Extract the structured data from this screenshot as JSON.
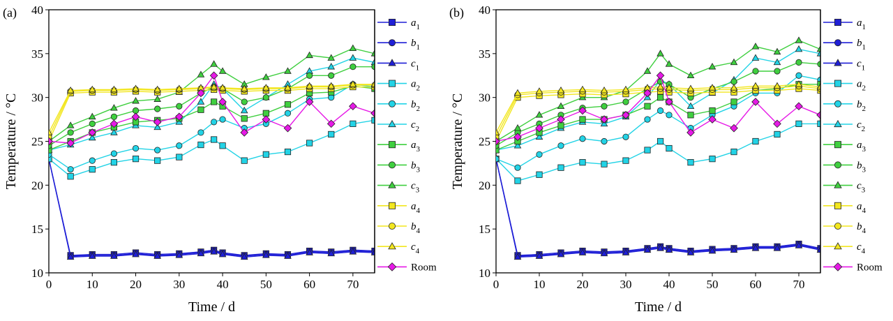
{
  "chart_data": [
    {
      "type": "line",
      "panel_label": "(a)",
      "title": "",
      "xlabel": "Time / d",
      "ylabel": "Temperature / °C",
      "xlim": [
        0,
        75
      ],
      "ylim": [
        10,
        40
      ],
      "xticks": [
        "0",
        "10",
        "20",
        "30",
        "40",
        "50",
        "60",
        "70"
      ],
      "yticks": [
        "10",
        "15",
        "20",
        "25",
        "30",
        "35",
        "40"
      ],
      "x": [
        0,
        5,
        10,
        15,
        20,
        25,
        30,
        35,
        38,
        40,
        45,
        50,
        55,
        60,
        65,
        70,
        75
      ],
      "series": [
        {
          "name": "a1",
          "color": "#1f1fd6",
          "marker": "square",
          "values": [
            23.0,
            12.0,
            12.1,
            12.1,
            12.3,
            12.1,
            12.2,
            12.4,
            12.6,
            12.3,
            12.0,
            12.2,
            12.1,
            12.5,
            12.4,
            12.6,
            12.5
          ]
        },
        {
          "name": "b1",
          "color": "#1f1fd6",
          "marker": "circle",
          "values": [
            23.0,
            11.9,
            12.0,
            12.0,
            12.2,
            12.0,
            12.1,
            12.3,
            12.5,
            12.2,
            11.9,
            12.1,
            12.0,
            12.4,
            12.3,
            12.5,
            12.4
          ]
        },
        {
          "name": "c1",
          "color": "#1f1fd6",
          "marker": "triangle",
          "values": [
            23.0,
            11.8,
            11.9,
            11.9,
            12.1,
            11.9,
            12.0,
            12.2,
            12.4,
            12.1,
            11.8,
            12.0,
            11.9,
            12.3,
            12.2,
            12.4,
            12.3
          ]
        },
        {
          "name": "a2",
          "color": "#22d3e6",
          "marker": "square",
          "values": [
            23.0,
            21.0,
            21.8,
            22.6,
            23.0,
            22.8,
            23.2,
            24.6,
            25.2,
            24.5,
            22.8,
            23.5,
            23.8,
            24.8,
            25.8,
            27.0,
            27.4
          ]
        },
        {
          "name": "b2",
          "color": "#22d3e6",
          "marker": "circle",
          "values": [
            23.5,
            21.8,
            22.8,
            23.6,
            24.2,
            24.0,
            24.5,
            26.0,
            27.2,
            27.5,
            26.5,
            27.0,
            28.2,
            29.8,
            30.0,
            31.5,
            31.2
          ]
        },
        {
          "name": "c2",
          "color": "#22d3e6",
          "marker": "triangle",
          "values": [
            24.0,
            24.6,
            25.4,
            26.0,
            26.8,
            26.6,
            27.2,
            29.5,
            31.5,
            31.0,
            28.5,
            30.0,
            31.5,
            33.0,
            33.5,
            34.5,
            34.0
          ]
        },
        {
          "name": "a3",
          "color": "#3fcf3f",
          "marker": "square",
          "values": [
            24.0,
            25.0,
            26.0,
            26.6,
            27.2,
            27.4,
            27.6,
            28.6,
            29.5,
            29.0,
            27.6,
            28.2,
            29.2,
            30.5,
            30.6,
            31.3,
            31.0
          ]
        },
        {
          "name": "b3",
          "color": "#3fcf3f",
          "marker": "circle",
          "values": [
            24.5,
            26.0,
            27.0,
            27.8,
            28.5,
            28.7,
            29.0,
            30.5,
            31.2,
            31.0,
            29.5,
            30.0,
            31.0,
            32.5,
            32.5,
            33.5,
            33.5
          ]
        },
        {
          "name": "c3",
          "color": "#3fcf3f",
          "marker": "triangle",
          "values": [
            25.0,
            26.8,
            27.8,
            28.8,
            29.6,
            29.8,
            30.6,
            32.6,
            33.8,
            33.0,
            31.5,
            32.3,
            33.0,
            34.8,
            34.5,
            35.6,
            35.0
          ]
        },
        {
          "name": "a4",
          "color": "#f2e61f",
          "marker": "square",
          "values": [
            25.0,
            30.5,
            30.6,
            30.6,
            30.7,
            30.6,
            30.7,
            30.8,
            30.9,
            30.8,
            30.7,
            30.8,
            30.8,
            31.0,
            31.0,
            31.2,
            31.2
          ]
        },
        {
          "name": "b4",
          "color": "#f2e61f",
          "marker": "circle",
          "values": [
            25.5,
            30.7,
            30.8,
            30.8,
            30.9,
            30.8,
            30.9,
            31.0,
            31.1,
            31.0,
            30.9,
            31.0,
            31.0,
            31.2,
            31.2,
            31.4,
            31.4
          ]
        },
        {
          "name": "c4",
          "color": "#f2e61f",
          "marker": "triangle",
          "values": [
            26.0,
            30.8,
            30.9,
            30.9,
            31.0,
            30.9,
            31.0,
            31.1,
            31.2,
            31.1,
            31.0,
            31.1,
            31.1,
            31.3,
            31.3,
            31.5,
            31.5
          ]
        },
        {
          "name": "Room",
          "color": "#e619e6",
          "marker": "diamond",
          "values": [
            25.0,
            24.8,
            26.0,
            27.0,
            27.8,
            27.2,
            27.8,
            30.5,
            32.5,
            29.5,
            26.0,
            27.5,
            26.5,
            29.5,
            27.0,
            29.0,
            28.2
          ]
        }
      ]
    },
    {
      "type": "line",
      "panel_label": "(b)",
      "title": "",
      "xlabel": "Time / d",
      "ylabel": "Temperature / °C",
      "xlim": [
        0,
        75
      ],
      "ylim": [
        10,
        40
      ],
      "xticks": [
        "0",
        "10",
        "20",
        "30",
        "40",
        "50",
        "60",
        "70"
      ],
      "yticks": [
        "10",
        "15",
        "20",
        "25",
        "30",
        "35",
        "40"
      ],
      "x": [
        0,
        5,
        10,
        15,
        20,
        25,
        30,
        35,
        38,
        40,
        45,
        50,
        55,
        60,
        65,
        70,
        75
      ],
      "series": [
        {
          "name": "a1",
          "color": "#1f1fd6",
          "marker": "square",
          "values": [
            23.0,
            12.0,
            12.1,
            12.3,
            12.5,
            12.4,
            12.5,
            12.8,
            13.0,
            12.8,
            12.5,
            12.7,
            12.8,
            13.0,
            13.0,
            13.3,
            12.8
          ]
        },
        {
          "name": "b1",
          "color": "#1f1fd6",
          "marker": "circle",
          "values": [
            23.0,
            11.9,
            12.0,
            12.2,
            12.4,
            12.3,
            12.4,
            12.7,
            12.9,
            12.7,
            12.4,
            12.6,
            12.7,
            12.9,
            12.9,
            13.2,
            12.7
          ]
        },
        {
          "name": "c1",
          "color": "#1f1fd6",
          "marker": "triangle",
          "values": [
            23.0,
            11.8,
            11.9,
            12.1,
            12.3,
            12.2,
            12.3,
            12.6,
            12.8,
            12.6,
            12.3,
            12.5,
            12.6,
            12.8,
            12.8,
            13.1,
            12.6
          ]
        },
        {
          "name": "a2",
          "color": "#22d3e6",
          "marker": "square",
          "values": [
            23.0,
            20.5,
            21.2,
            22.0,
            22.6,
            22.4,
            22.8,
            24.0,
            25.0,
            24.2,
            22.6,
            23.0,
            23.8,
            25.0,
            25.8,
            27.0,
            27.0
          ]
        },
        {
          "name": "b2",
          "color": "#22d3e6",
          "marker": "circle",
          "values": [
            23.0,
            22.0,
            23.5,
            24.5,
            25.3,
            25.0,
            25.5,
            27.5,
            28.5,
            28.0,
            26.5,
            28.0,
            29.0,
            30.5,
            30.5,
            32.5,
            32.0
          ]
        },
        {
          "name": "c2",
          "color": "#22d3e6",
          "marker": "triangle",
          "values": [
            24.0,
            24.5,
            25.5,
            26.5,
            27.2,
            27.0,
            27.8,
            30.0,
            32.0,
            31.5,
            29.0,
            30.5,
            32.0,
            34.5,
            34.0,
            35.5,
            35.0
          ]
        },
        {
          "name": "a3",
          "color": "#3fcf3f",
          "marker": "square",
          "values": [
            24.0,
            25.0,
            26.0,
            26.8,
            27.5,
            27.5,
            28.0,
            29.0,
            30.0,
            29.5,
            28.0,
            28.5,
            29.5,
            30.8,
            31.0,
            31.5,
            31.5
          ]
        },
        {
          "name": "b3",
          "color": "#3fcf3f",
          "marker": "circle",
          "values": [
            24.5,
            26.0,
            27.0,
            28.0,
            28.8,
            29.0,
            29.5,
            31.0,
            31.8,
            31.5,
            30.0,
            31.0,
            31.8,
            33.0,
            33.0,
            34.0,
            33.8
          ]
        },
        {
          "name": "c3",
          "color": "#3fcf3f",
          "marker": "triangle",
          "values": [
            25.0,
            26.5,
            28.0,
            29.0,
            30.0,
            30.0,
            30.8,
            33.0,
            35.0,
            33.8,
            32.5,
            33.5,
            34.0,
            35.8,
            35.2,
            36.5,
            35.5
          ]
        },
        {
          "name": "a4",
          "color": "#f2e61f",
          "marker": "square",
          "values": [
            25.0,
            30.0,
            30.2,
            30.3,
            30.4,
            30.3,
            30.4,
            30.6,
            30.7,
            30.6,
            30.5,
            30.6,
            30.6,
            30.8,
            30.8,
            31.0,
            30.8
          ]
        },
        {
          "name": "b4",
          "color": "#f2e61f",
          "marker": "circle",
          "values": [
            25.5,
            30.3,
            30.5,
            30.6,
            30.7,
            30.6,
            30.7,
            30.9,
            31.0,
            30.9,
            30.8,
            30.9,
            30.9,
            31.1,
            31.1,
            31.3,
            31.0
          ]
        },
        {
          "name": "c4",
          "color": "#f2e61f",
          "marker": "triangle",
          "values": [
            26.0,
            30.5,
            30.7,
            30.8,
            30.9,
            30.8,
            30.9,
            31.1,
            31.2,
            31.1,
            31.0,
            31.1,
            31.1,
            31.3,
            31.3,
            31.5,
            31.2
          ]
        },
        {
          "name": "Room",
          "color": "#e619e6",
          "marker": "diamond",
          "values": [
            25.0,
            25.5,
            26.5,
            27.5,
            28.5,
            27.5,
            28.0,
            30.5,
            32.5,
            29.5,
            26.0,
            27.5,
            26.5,
            29.5,
            27.0,
            29.0,
            28.0
          ]
        }
      ]
    }
  ]
}
